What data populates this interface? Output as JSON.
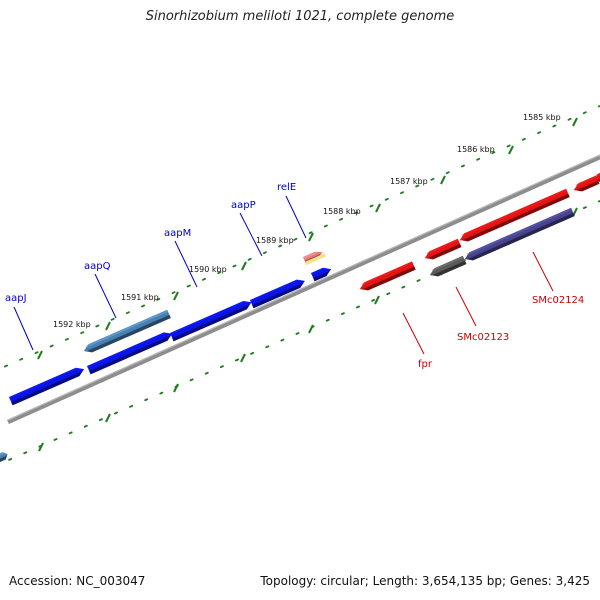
{
  "header": {
    "title": "Sinorhizobium meliloti 1021, complete genome"
  },
  "footer": {
    "accession": "Accession: NC_003047",
    "summary": "Topology: circular; Length: 3,654,135 bp; Genes: 3,425"
  },
  "scale": {
    "unit": "kbp",
    "labels": [
      "1585 kbp",
      "1586 kbp",
      "1587 kbp",
      "1588 kbp",
      "1589 kbp",
      "1590 kbp",
      "1591 kbp",
      "1592 kbp"
    ]
  },
  "colors": {
    "tick": "#1e7d1e",
    "backbone": "#7a7a7a",
    "forward_label": "#0000cc",
    "reverse_label": "#cc0000",
    "forward_gene": "#0a14e6",
    "reverse_gene": "#e31414",
    "steel_gene": "#4a7fb0",
    "slate_gene": "#47448c",
    "gray_gene": "#5a5a5a",
    "pink_gene": "#e87878"
  },
  "features": {
    "forward_labels": [
      "aapJ",
      "aapQ",
      "aapM",
      "aapP",
      "relE"
    ],
    "reverse_labels": [
      "fpr",
      "SMc02123",
      "SMc02124"
    ]
  }
}
